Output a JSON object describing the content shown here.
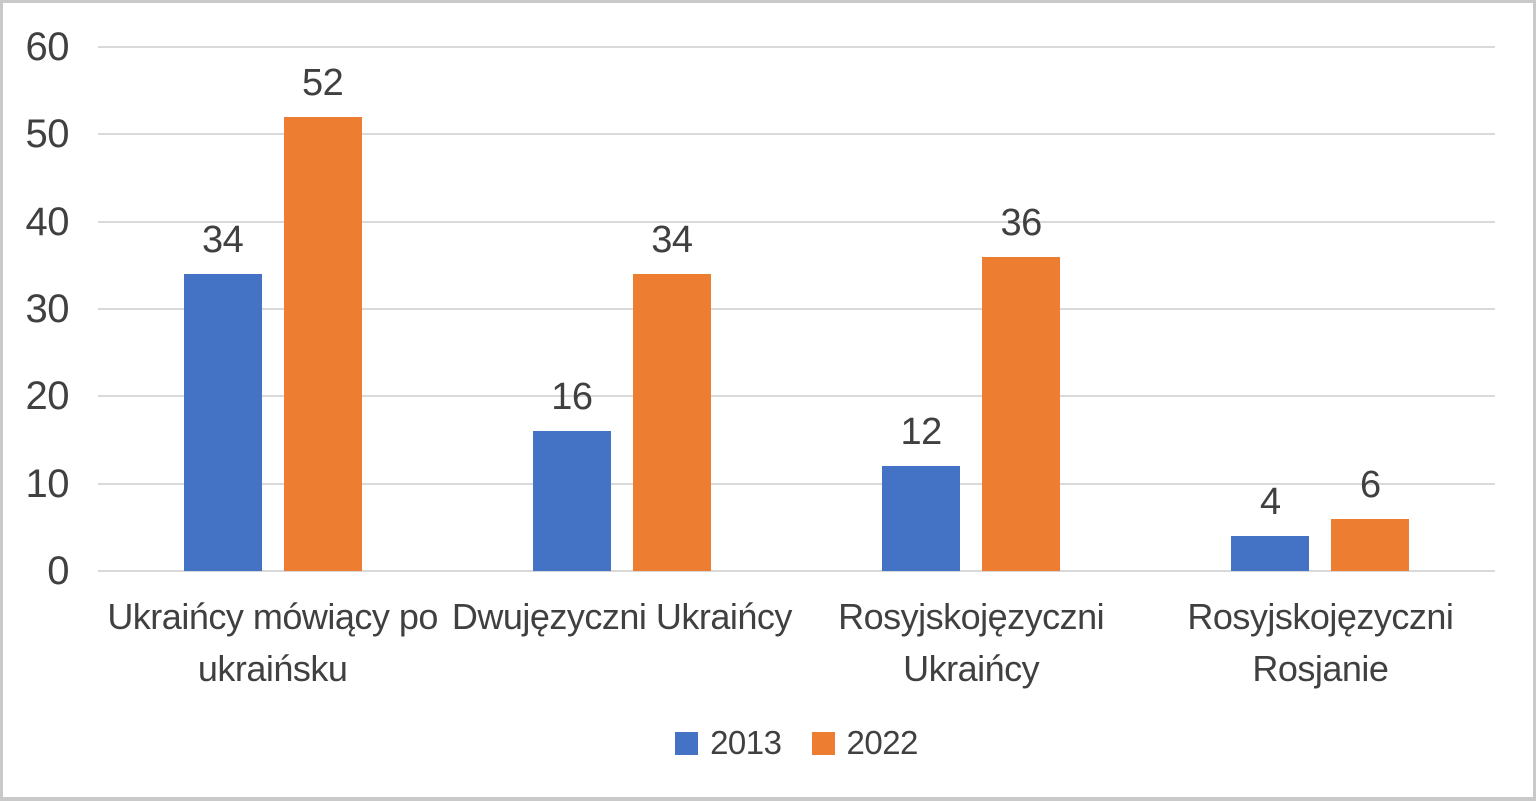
{
  "chart_data": {
    "type": "bar",
    "title": "",
    "xlabel": "",
    "ylabel": "",
    "categories": [
      "Ukraińcy mówiący po ukraińsku",
      "Dwujęzyczni Ukraińcy",
      "Rosyjskojęzyczni Ukraińcy",
      "Rosyjskojęzyczni Rosjanie"
    ],
    "categories_wrapped": [
      [
        "Ukraińcy mówiący po",
        "ukraińsku"
      ],
      [
        "Dwujęzyczni Ukraińcy"
      ],
      [
        "Rosyjskojęzyczni",
        "Ukraińcy"
      ],
      [
        "Rosyjskojęzyczni",
        "Rosjanie"
      ]
    ],
    "series": [
      {
        "name": "2013",
        "color": "#4472C4",
        "values": [
          34,
          16,
          12,
          4
        ]
      },
      {
        "name": "2022",
        "color": "#ED7D31",
        "values": [
          52,
          34,
          36,
          6
        ]
      }
    ],
    "ylim": [
      0,
      60
    ],
    "yticks": [
      0,
      10,
      20,
      30,
      40,
      50,
      60
    ],
    "grid": true,
    "data_labels": true,
    "legend_position": "bottom"
  },
  "style": {
    "grid_color": "#D9D9D9",
    "axis_line_color": "#D9D9D9",
    "text_color": "#404040",
    "background": "#FFFFFF",
    "border_color": "#C9C9C9"
  }
}
